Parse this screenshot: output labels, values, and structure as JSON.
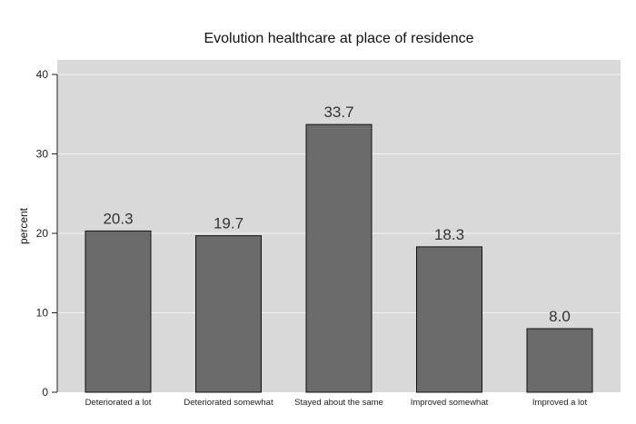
{
  "chart_data": {
    "type": "bar",
    "title": "Evolution healthcare at place of residence",
    "xlabel": "",
    "ylabel": "percent",
    "categories": [
      "Deteriorated a lot",
      "Deteriorated somewhat",
      "Stayed about the same",
      "Improved somewhat",
      "Improved a lot"
    ],
    "values": [
      20.3,
      19.7,
      33.7,
      18.3,
      8.0
    ],
    "value_labels": [
      "20.3",
      "19.7",
      "33.7",
      "18.3",
      "8.0"
    ],
    "ylim": [
      0,
      40
    ],
    "yticks": [
      0,
      10,
      20,
      30,
      40
    ],
    "grid": true,
    "legend": "none",
    "colors": {
      "bar": "#6b6b6b",
      "bar_edge": "#111111",
      "plot_bg": "#d9d9d9",
      "grid": "#f2f2f2"
    }
  }
}
